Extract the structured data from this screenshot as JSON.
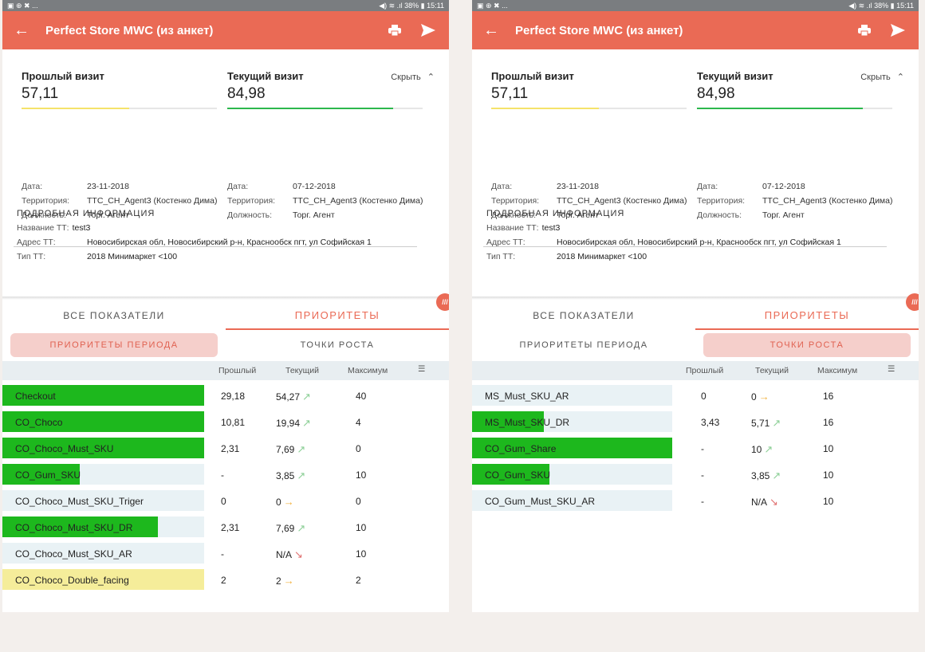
{
  "status_bar": {
    "left": "▣ ⊕ ✖ ...",
    "right": "◀) ≋ .ıl 38% ▮ 15:11"
  },
  "app": {
    "title": "Perfect Store MWC (из анкет)",
    "accent": "#ea6a55"
  },
  "visits": {
    "previous": {
      "heading": "Прошлый визит",
      "score": "57,11",
      "bar_fraction": 0.55,
      "bar_color": "#f5e36a",
      "details": [
        {
          "k": "Дата:",
          "v": "23-11-2018"
        },
        {
          "k": "Территория:",
          "v": "TTC_CH_Agent3 (Костенко Дима)"
        },
        {
          "k": "Должность:",
          "v": "Торг. Агент"
        }
      ]
    },
    "current": {
      "heading": "Текущий визит",
      "score": "84,98",
      "bar_fraction": 0.85,
      "bar_color": "#2db84d",
      "details": [
        {
          "k": "Дата:",
          "v": "07-12-2018"
        },
        {
          "k": "Территория:",
          "v": "TTC_CH_Agent3 (Костенко Дима)"
        },
        {
          "k": "Должность:",
          "v": "Торг. Агент"
        }
      ]
    },
    "hide_label": "Скрыть"
  },
  "info": {
    "heading": "ПОДРОБНАЯ ИНФОРМАЦИЯ",
    "name_label": "Название ТТ:",
    "name_value": "test3",
    "address_label": "Адрес ТТ:",
    "address_value": "Новосибирская обл, Новосибирский р-н, Краснообск пгт, ул Софийская 1",
    "type_label": "Тип ТТ:",
    "type_value": "2018 Минимаркет <100"
  },
  "tabs": {
    "all": "ВСЕ ПОКАЗАТЕЛИ",
    "priorities": "ПРИОРИТЕТЫ"
  },
  "subtabs": {
    "period": "ПРИОРИТЕТЫ ПЕРИОДА",
    "growth": "ТОЧКИ РОСТА"
  },
  "table_header": {
    "prev": "Прошлый",
    "cur": "Текущий",
    "max": "Максимум"
  },
  "left_rows": [
    {
      "name": "Checkout",
      "prev": "29,18",
      "cur": "54,27",
      "trend": "up",
      "max": "40",
      "fill": 1.0,
      "color": "#1db81d"
    },
    {
      "name": "CO_Choco",
      "prev": "10,81",
      "cur": "19,94",
      "trend": "up",
      "max": "4",
      "fill": 1.0,
      "color": "#1db81d"
    },
    {
      "name": "CO_Choco_Must_SKU",
      "prev": "2,31",
      "cur": "7,69",
      "trend": "up",
      "max": "0",
      "fill": 1.0,
      "color": "#1db81d"
    },
    {
      "name": "CO_Gum_SKU",
      "prev": "-",
      "cur": "3,85",
      "trend": "up",
      "max": "10",
      "fill": 0.385,
      "color": "#1db81d"
    },
    {
      "name": "CO_Choco_Must_SKU_Triger",
      "prev": "0",
      "cur": "0",
      "trend": "flat",
      "max": "0",
      "fill": 0,
      "color": "#1db81d"
    },
    {
      "name": "CO_Choco_Must_SKU_DR",
      "prev": "2,31",
      "cur": "7,69",
      "trend": "up",
      "max": "10",
      "fill": 0.769,
      "color": "#1db81d"
    },
    {
      "name": "CO_Choco_Must_SKU_AR",
      "prev": "-",
      "cur": "N/A",
      "trend": "down",
      "max": "10",
      "fill": 0,
      "color": "#1db81d"
    },
    {
      "name": "CO_Choco_Double_facing",
      "prev": "2",
      "cur": "2",
      "trend": "flat",
      "max": "2",
      "fill": 1.0,
      "color": "#f5ed9a"
    }
  ],
  "right_rows": [
    {
      "name": "MS_Must_SKU_AR",
      "prev": "0",
      "cur": "0",
      "trend": "flat",
      "max": "16",
      "fill": 0,
      "color": "#1db81d"
    },
    {
      "name": "MS_Must_SKU_DR",
      "prev": "3,43",
      "cur": "5,71",
      "trend": "up",
      "max": "16",
      "fill": 0.357,
      "color": "#1db81d"
    },
    {
      "name": "CO_Gum_Share",
      "prev": "-",
      "cur": "10",
      "trend": "up",
      "max": "10",
      "fill": 1.0,
      "color": "#1db81d"
    },
    {
      "name": "CO_Gum_SKU",
      "prev": "-",
      "cur": "3,85",
      "trend": "up",
      "max": "10",
      "fill": 0.385,
      "color": "#1db81d"
    },
    {
      "name": "CO_Gum_Must_SKU_AR",
      "prev": "-",
      "cur": "N/A",
      "trend": "down",
      "max": "10",
      "fill": 0,
      "color": "#1db81d"
    }
  ]
}
